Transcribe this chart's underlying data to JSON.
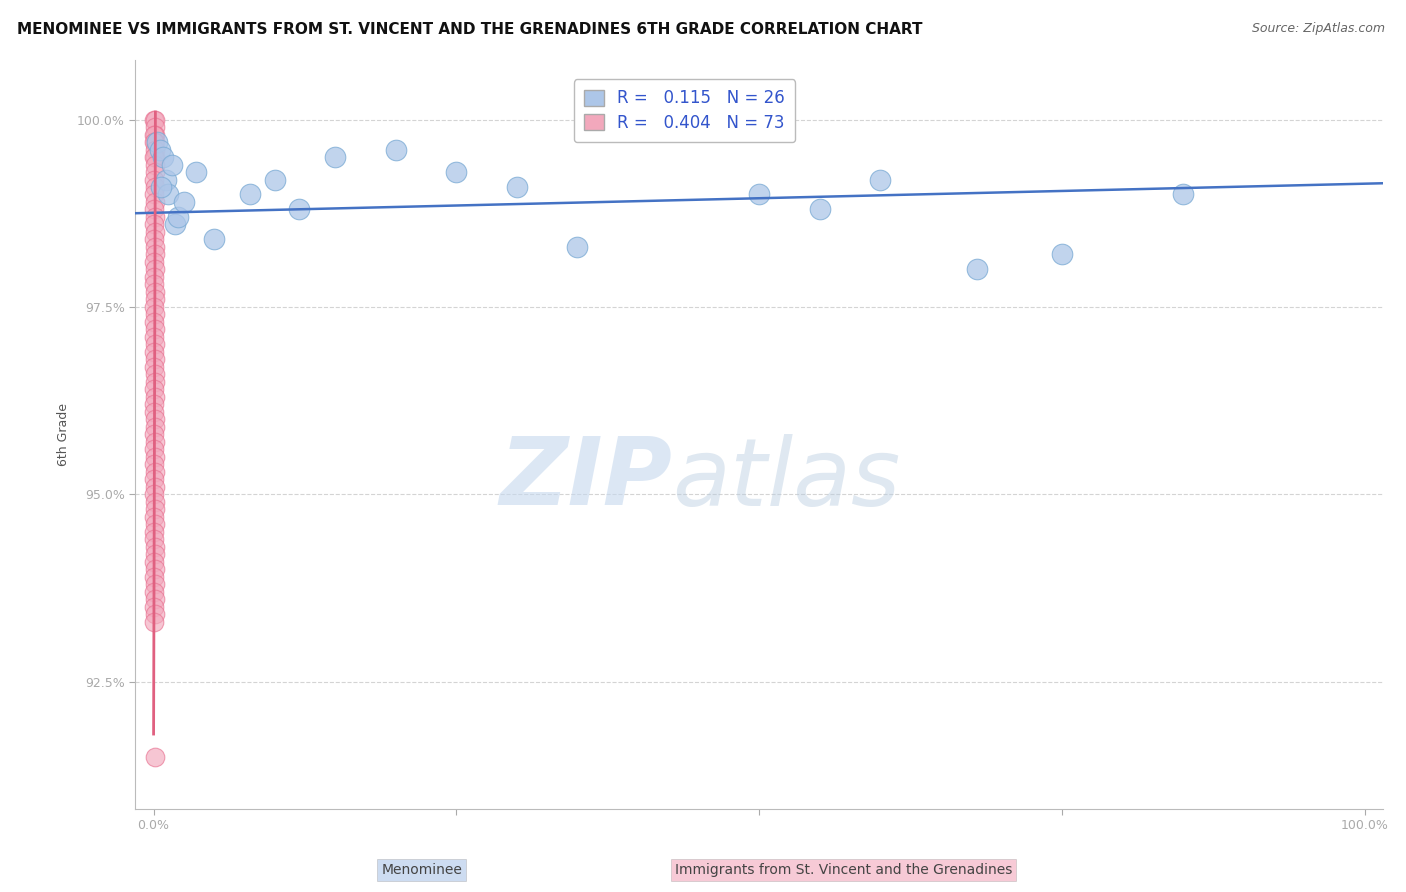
{
  "title": "MENOMINEE VS IMMIGRANTS FROM ST. VINCENT AND THE GRENADINES 6TH GRADE CORRELATION CHART",
  "source": "Source: ZipAtlas.com",
  "ylabel": "6th Grade",
  "yticks": [
    100.0,
    97.5,
    95.0,
    92.5
  ],
  "ytick_labels": [
    "100.0%",
    "97.5%",
    "95.0%",
    "92.5%"
  ],
  "ymin": 90.8,
  "ymax": 100.8,
  "xmin": -1.5,
  "xmax": 101.5,
  "xtick_left": "0.0%",
  "xtick_right": "100.0%",
  "legend_blue_label": "R =   0.115   N = 26",
  "legend_pink_label": "R =   0.404   N = 73",
  "blue_color": "#adc6e8",
  "pink_color": "#f2a8bc",
  "blue_edge_color": "#7aaad4",
  "pink_edge_color": "#e87090",
  "blue_line_color": "#4472c4",
  "pink_line_color": "#e06080",
  "blue_x": [
    0.3,
    0.5,
    0.8,
    1.0,
    1.2,
    1.5,
    1.8,
    2.0,
    2.5,
    0.6,
    3.5,
    5.0,
    8.0,
    10.0,
    12.0,
    15.0,
    20.0,
    25.0,
    30.0,
    35.0,
    50.0,
    55.0,
    60.0,
    68.0,
    75.0,
    85.0
  ],
  "blue_y": [
    99.7,
    99.6,
    99.5,
    99.2,
    99.0,
    99.4,
    98.6,
    98.7,
    98.9,
    99.1,
    99.3,
    98.4,
    99.0,
    99.2,
    98.8,
    99.5,
    99.6,
    99.3,
    99.1,
    98.3,
    99.0,
    98.8,
    99.2,
    98.0,
    98.2,
    99.0
  ],
  "pink_x": [
    0.05,
    0.08,
    0.1,
    0.12,
    0.06,
    0.09,
    0.07,
    0.11,
    0.13,
    0.05,
    0.08,
    0.1,
    0.06,
    0.09,
    0.07,
    0.11,
    0.05,
    0.08,
    0.06,
    0.09,
    0.07,
    0.1,
    0.08,
    0.06,
    0.09,
    0.07,
    0.05,
    0.08,
    0.1,
    0.06,
    0.09,
    0.07,
    0.11,
    0.05,
    0.08,
    0.06,
    0.09,
    0.07,
    0.1,
    0.08,
    0.06,
    0.09,
    0.07,
    0.05,
    0.08,
    0.1,
    0.06,
    0.09,
    0.07,
    0.11,
    0.05,
    0.08,
    0.06,
    0.09,
    0.07,
    0.1,
    0.08,
    0.06,
    0.09,
    0.07,
    0.05,
    0.08,
    0.1,
    0.06,
    0.09,
    0.07,
    0.11,
    0.05,
    0.08,
    0.06,
    0.09,
    0.07,
    0.1
  ],
  "pink_y": [
    100.0,
    100.0,
    99.9,
    99.8,
    99.8,
    99.7,
    99.7,
    99.6,
    99.5,
    99.5,
    99.4,
    99.3,
    99.2,
    99.1,
    99.0,
    98.9,
    98.8,
    98.7,
    98.6,
    98.5,
    98.4,
    98.3,
    98.2,
    98.1,
    98.0,
    97.9,
    97.8,
    97.7,
    97.6,
    97.5,
    97.4,
    97.3,
    97.2,
    97.1,
    97.0,
    96.9,
    96.8,
    96.7,
    96.6,
    96.5,
    96.4,
    96.3,
    96.2,
    96.1,
    96.0,
    95.9,
    95.8,
    95.7,
    95.6,
    95.5,
    95.4,
    95.3,
    95.2,
    95.1,
    95.0,
    94.9,
    94.8,
    94.7,
    94.6,
    94.5,
    94.4,
    94.3,
    94.2,
    94.1,
    94.0,
    93.9,
    93.8,
    93.7,
    93.6,
    93.5,
    93.4,
    93.3,
    91.5
  ],
  "blue_trendline_x": [
    -1.5,
    101.5
  ],
  "blue_trendline_y": [
    98.75,
    99.15
  ],
  "pink_trendline_x": [
    0.0,
    0.15
  ],
  "pink_trendline_y": [
    91.8,
    100.1
  ],
  "watermark_zip": "ZIP",
  "watermark_atlas": "atlas",
  "background_color": "#ffffff",
  "grid_color": "#d0d0d0",
  "title_fontsize": 11,
  "source_fontsize": 9,
  "axis_label_fontsize": 9,
  "tick_fontsize": 9,
  "legend_fontsize": 12,
  "bottom_label_menominee": "Menominee",
  "bottom_label_immigrants": "Immigrants from St. Vincent and the Grenadines"
}
